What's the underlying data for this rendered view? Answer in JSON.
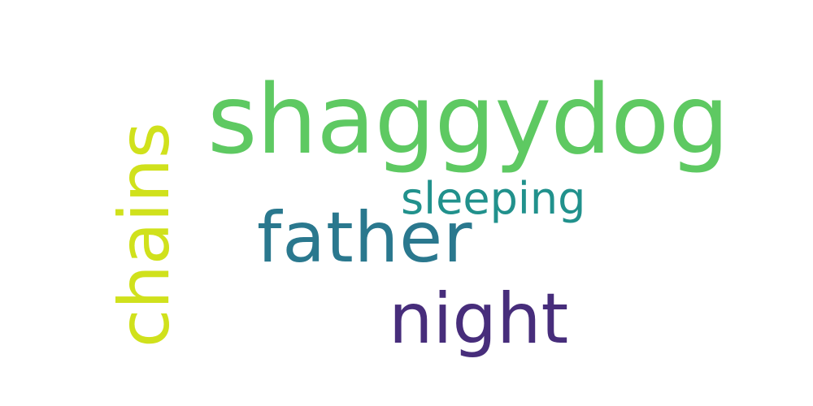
{
  "words": [
    {
      "text": "shaggydog",
      "color": "#5ec962"
    },
    {
      "text": "sleeping",
      "color": "#21918c"
    },
    {
      "text": "father",
      "color": "#2a788e"
    },
    {
      "text": "night",
      "color": "#472d7b"
    },
    {
      "text": "chains",
      "color": "#d0e11c"
    }
  ]
}
